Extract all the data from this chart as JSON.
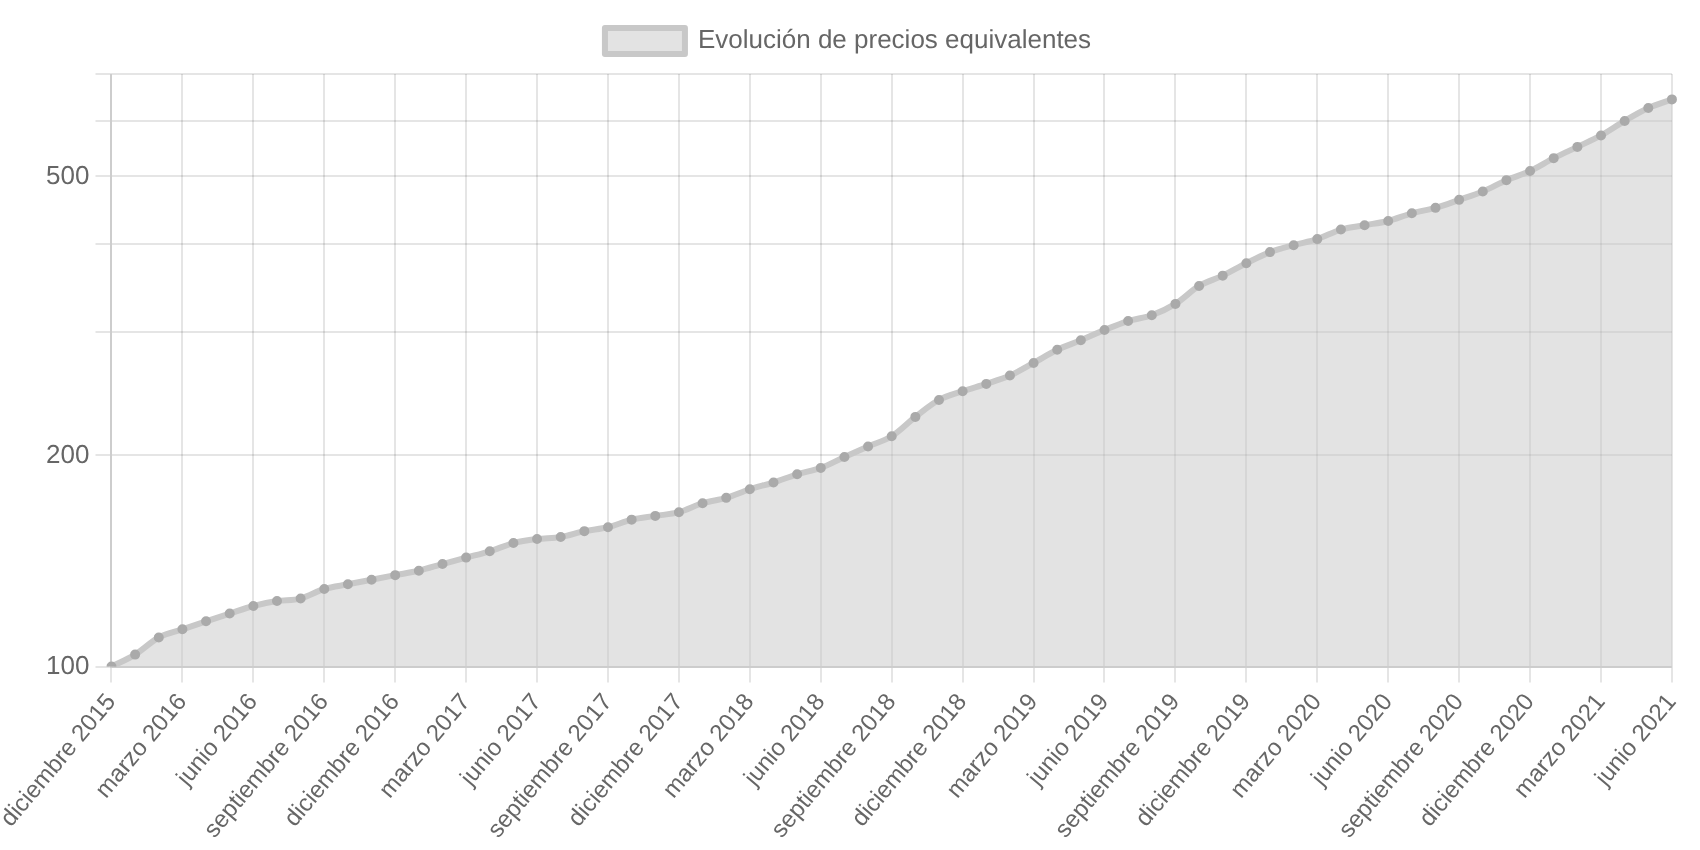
{
  "chart_data": {
    "type": "area",
    "legend": "top",
    "grid": true,
    "marker": "circle",
    "log": "y",
    "categories": [
      "diciembre 2015",
      null,
      null,
      "marzo 2016",
      null,
      null,
      "junio 2016",
      null,
      null,
      "septiembre 2016",
      null,
      null,
      "diciembre 2016",
      null,
      null,
      "marzo 2017",
      null,
      null,
      "junio 2017",
      null,
      null,
      "septiembre 2017",
      null,
      null,
      "diciembre 2017",
      null,
      null,
      "marzo 2018",
      null,
      null,
      "junio 2018",
      null,
      null,
      "septiembre 2018",
      null,
      null,
      "diciembre 2018",
      null,
      null,
      "marzo 2019",
      null,
      null,
      "junio 2019",
      null,
      null,
      "septiembre 2019",
      null,
      null,
      "diciembre 2019",
      null,
      null,
      "marzo 2020",
      null,
      null,
      "junio 2020",
      null,
      null,
      "septiembre 2020",
      null,
      null,
      "diciembre 2020",
      null,
      null,
      "marzo 2021",
      null,
      null,
      "junio 2021"
    ],
    "ylim": [
      100,
      700
    ],
    "yticks": [
      100,
      200,
      {
        "value": 300,
        "label": null
      },
      {
        "value": 400,
        "label": null
      },
      500,
      {
        "value": 600,
        "label": null
      },
      {
        "value": 700,
        "label": null
      }
    ],
    "series": [
      {
        "name": "Evolución de precios equivalentes",
        "color": "#c8c8c8",
        "values": [
          100,
          104,
          110,
          113,
          116,
          119,
          122,
          124,
          125,
          129,
          131,
          133,
          135,
          137,
          140,
          143,
          146,
          150,
          152,
          153,
          156,
          158,
          162,
          164,
          166,
          171,
          174,
          179,
          183,
          188,
          192,
          199,
          206,
          213,
          227,
          240,
          247,
          253,
          260,
          271,
          283,
          292,
          302,
          311,
          317,
          329,
          349,
          361,
          376,
          390,
          399,
          407,
          420,
          426,
          432,
          443,
          451,
          463,
          476,
          494,
          509,
          531,
          551,
          572,
          600,
          626,
          644
        ]
      }
    ]
  }
}
